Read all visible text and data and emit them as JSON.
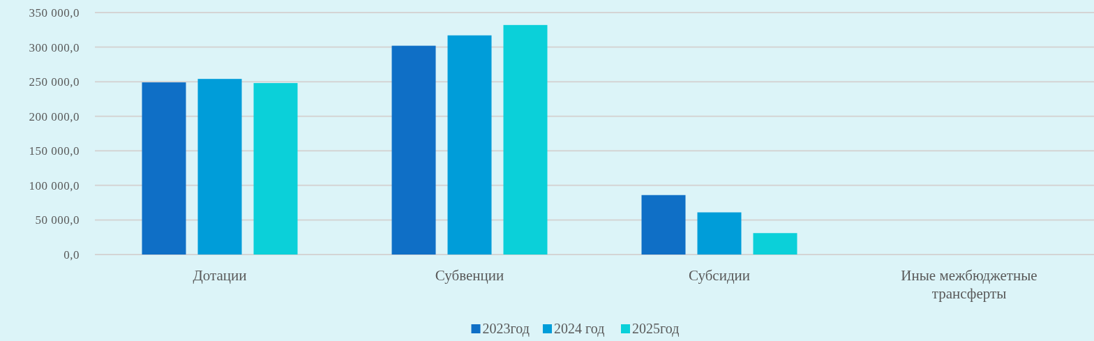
{
  "chart_data": {
    "type": "bar",
    "categories": [
      "Дотации",
      "Субвенции",
      "Субсидии",
      "Иные межбюджетные трансферты"
    ],
    "series": [
      {
        "name": "2023год",
        "color": "#0f6fc6",
        "values": [
          249000,
          302000,
          86000,
          0
        ]
      },
      {
        "name": "2024 год",
        "color": "#009dd9",
        "values": [
          254000,
          317000,
          61000,
          0
        ]
      },
      {
        "name": "2025год",
        "color": "#0bd0d9",
        "values": [
          248000,
          332000,
          31000,
          0
        ]
      }
    ],
    "ylim": [
      0,
      350000
    ],
    "yticks": [
      {
        "value": 0,
        "label": "0,0"
      },
      {
        "value": 50000,
        "label": "50 000,0"
      },
      {
        "value": 100000,
        "label": "100 000,0"
      },
      {
        "value": 150000,
        "label": "150 000,0"
      },
      {
        "value": 200000,
        "label": "200 000,0"
      },
      {
        "value": 250000,
        "label": "250 000,0"
      },
      {
        "value": 300000,
        "label": "300 000,0"
      },
      {
        "value": 350000,
        "label": "350 000,0"
      }
    ],
    "grid": "y",
    "legend": "bottom"
  }
}
